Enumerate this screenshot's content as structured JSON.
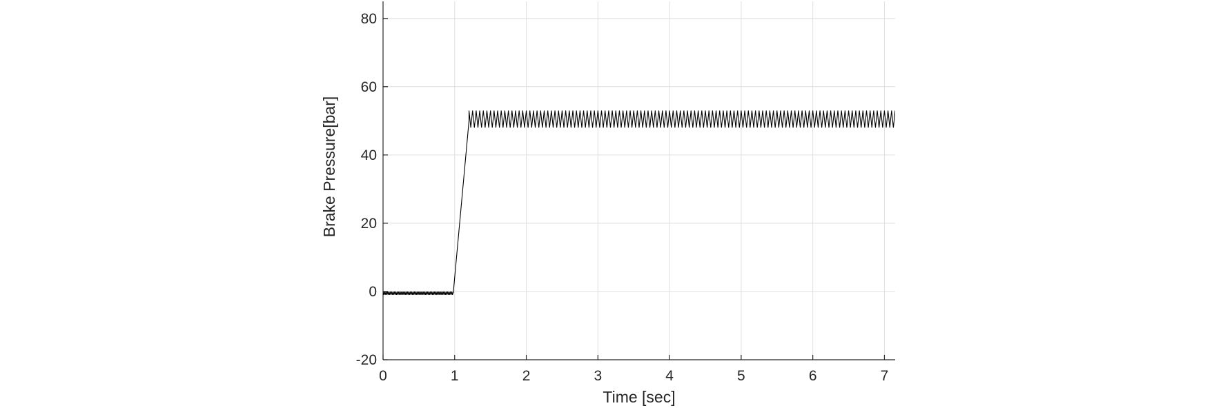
{
  "chart_data": {
    "type": "line",
    "title": "",
    "xlabel": "Time [sec]",
    "ylabel": "Brake Pressure[bar]",
    "xlim": [
      0,
      7.15
    ],
    "ylim": [
      -20,
      85
    ],
    "xticks": [
      0,
      1,
      2,
      3,
      4,
      5,
      6,
      7
    ],
    "yticks": [
      -20,
      0,
      20,
      40,
      60,
      80
    ],
    "xtick_labels": [
      "0",
      "1",
      "2",
      "3",
      "4",
      "5",
      "6",
      "7"
    ],
    "ytick_labels": [
      "-20",
      "0",
      "20",
      "40",
      "60",
      "80"
    ],
    "grid": true,
    "legend": "none",
    "colors": {
      "line": "#000000",
      "grid": "#dfdfdf",
      "axis": "#262626"
    },
    "series": [
      {
        "segments": [
          {
            "description_range": [
              0,
              0.98
            ],
            "behavior": "oscillation",
            "center": -0.5,
            "min": -1,
            "max": 0,
            "period": 0.02
          },
          {
            "description_range": [
              0.98,
              1.2
            ],
            "behavior": "ramp",
            "from": -0.5,
            "to": 50
          },
          {
            "description_range": [
              1.2,
              7.15
            ],
            "behavior": "oscillation",
            "center": 50.5,
            "min": 48,
            "max": 53,
            "period": 0.05
          }
        ]
      }
    ]
  }
}
